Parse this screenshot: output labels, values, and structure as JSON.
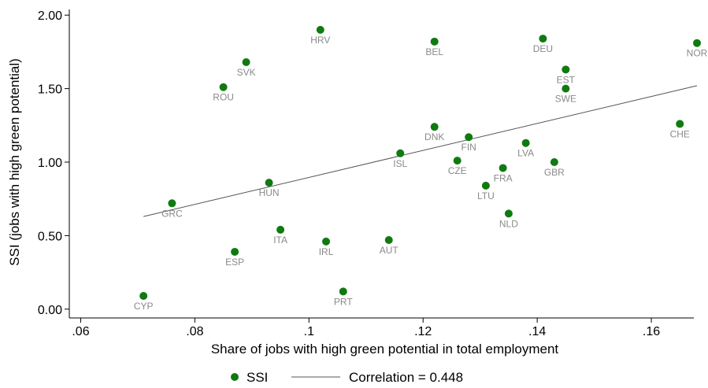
{
  "chart_data": {
    "type": "scatter",
    "xlabel": "Share of jobs with high green potential in total employment",
    "ylabel": "SSI (jobs with high green potential)",
    "xlim": [
      0.058,
      0.168
    ],
    "ylim": [
      -0.06,
      2.06
    ],
    "x_ticks": [
      0.06,
      0.08,
      0.1,
      0.12,
      0.14,
      0.16
    ],
    "x_tick_labels": [
      ".06",
      ".08",
      ".1",
      ".12",
      ".14",
      ".16"
    ],
    "y_ticks": [
      0,
      0.5,
      1,
      1.5,
      2
    ],
    "y_tick_labels": [
      "0.00",
      "0.50",
      "1.00",
      "1.50",
      "2.00"
    ],
    "grid": false,
    "legend_position": "bottom",
    "point_color": "#107a10",
    "line_color": "#555555",
    "series": [
      {
        "name": "SSI",
        "points": [
          {
            "label": "CYP",
            "x": 0.071,
            "y": 0.09
          },
          {
            "label": "GRC",
            "x": 0.076,
            "y": 0.72
          },
          {
            "label": "ESP",
            "x": 0.087,
            "y": 0.39
          },
          {
            "label": "ROU",
            "x": 0.085,
            "y": 1.51
          },
          {
            "label": "SVK",
            "x": 0.089,
            "y": 1.68
          },
          {
            "label": "HUN",
            "x": 0.093,
            "y": 0.86
          },
          {
            "label": "ITA",
            "x": 0.095,
            "y": 0.54
          },
          {
            "label": "HRV",
            "x": 0.102,
            "y": 1.9
          },
          {
            "label": "IRL",
            "x": 0.103,
            "y": 0.46
          },
          {
            "label": "PRT",
            "x": 0.106,
            "y": 0.12
          },
          {
            "label": "AUT",
            "x": 0.114,
            "y": 0.47
          },
          {
            "label": "ISL",
            "x": 0.116,
            "y": 1.06
          },
          {
            "label": "BEL",
            "x": 0.122,
            "y": 1.82
          },
          {
            "label": "DNK",
            "x": 0.122,
            "y": 1.24
          },
          {
            "label": "CZE",
            "x": 0.126,
            "y": 1.01
          },
          {
            "label": "FIN",
            "x": 0.128,
            "y": 1.17
          },
          {
            "label": "LTU",
            "x": 0.131,
            "y": 0.84
          },
          {
            "label": "FRA",
            "x": 0.134,
            "y": 0.96
          },
          {
            "label": "NLD",
            "x": 0.135,
            "y": 0.65
          },
          {
            "label": "LVA",
            "x": 0.138,
            "y": 1.13
          },
          {
            "label": "DEU",
            "x": 0.141,
            "y": 1.84
          },
          {
            "label": "GBR",
            "x": 0.143,
            "y": 1.0
          },
          {
            "label": "EST",
            "x": 0.145,
            "y": 1.63
          },
          {
            "label": "SWE",
            "x": 0.145,
            "y": 1.5
          },
          {
            "label": "CHE",
            "x": 0.165,
            "y": 1.26
          },
          {
            "label": "NOR",
            "x": 0.168,
            "y": 1.81
          }
        ]
      }
    ],
    "fit_line": {
      "name": "Correlation = 0.448",
      "x": [
        0.071,
        0.168
      ],
      "y": [
        0.63,
        1.52
      ]
    }
  }
}
